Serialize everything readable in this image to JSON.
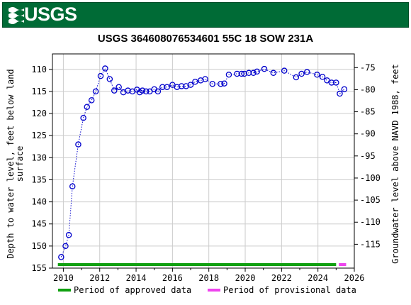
{
  "header": {
    "logo_text": "USGS"
  },
  "chart_data": {
    "type": "scatter",
    "title": "USGS 364608076534601 55C 18 SOW 231A",
    "ylabel_left": [
      "Depth to water level, feet below land",
      "surface"
    ],
    "ylabel_right": "Groundwater level above NAVD 1988, feet",
    "x_ticks": [
      "2010",
      "2012",
      "2014",
      "2016",
      "2018",
      "2020",
      "2022",
      "2024",
      "2026"
    ],
    "y_left_ticks": [
      "110",
      "115",
      "120",
      "125",
      "130",
      "135",
      "140",
      "145",
      "150",
      "155"
    ],
    "y_right_ticks": [
      "-75",
      "-80",
      "-85",
      "-90",
      "-95",
      "-100",
      "-105",
      "-110",
      "-115"
    ],
    "xlim": [
      2009.4,
      2026
    ],
    "ylim_left": [
      155,
      106.5
    ],
    "grid": true,
    "series": [
      {
        "values": [
          [
            2009.88,
            152.5
          ],
          [
            2010.12,
            150.0
          ],
          [
            2010.3,
            147.5
          ],
          [
            2010.5,
            136.5
          ],
          [
            2010.82,
            127.0
          ],
          [
            2011.1,
            121.0
          ],
          [
            2011.3,
            118.5
          ],
          [
            2011.55,
            117.0
          ],
          [
            2011.78,
            115.0
          ],
          [
            2012.05,
            111.5
          ],
          [
            2012.3,
            109.8
          ],
          [
            2012.55,
            112.2
          ],
          [
            2012.8,
            114.8
          ],
          [
            2013.05,
            114.0
          ],
          [
            2013.3,
            115.2
          ],
          [
            2013.55,
            114.8
          ],
          [
            2013.8,
            115.0
          ],
          [
            2014.05,
            114.6
          ],
          [
            2014.2,
            115.2
          ],
          [
            2014.35,
            114.8
          ],
          [
            2014.55,
            115.0
          ],
          [
            2014.75,
            115.0
          ],
          [
            2015.0,
            114.5
          ],
          [
            2015.2,
            115.0
          ],
          [
            2015.45,
            114.0
          ],
          [
            2015.7,
            114.0
          ],
          [
            2016.0,
            113.5
          ],
          [
            2016.25,
            114.0
          ],
          [
            2016.5,
            113.8
          ],
          [
            2016.75,
            113.8
          ],
          [
            2017.0,
            113.5
          ],
          [
            2017.25,
            112.8
          ],
          [
            2017.55,
            112.5
          ],
          [
            2017.8,
            112.2
          ],
          [
            2018.2,
            113.3
          ],
          [
            2018.65,
            113.3
          ],
          [
            2018.85,
            113.2
          ],
          [
            2019.1,
            111.2
          ],
          [
            2019.55,
            111.0
          ],
          [
            2019.8,
            111.0
          ],
          [
            2019.95,
            111.0
          ],
          [
            2020.2,
            110.8
          ],
          [
            2020.45,
            110.8
          ],
          [
            2020.65,
            110.5
          ],
          [
            2021.05,
            109.9
          ],
          [
            2021.55,
            110.8
          ],
          [
            2022.15,
            110.3
          ],
          [
            2022.8,
            111.8
          ],
          [
            2023.1,
            111.0
          ],
          [
            2023.4,
            110.6
          ],
          [
            2023.95,
            111.2
          ],
          [
            2024.25,
            111.7
          ],
          [
            2024.5,
            112.5
          ],
          [
            2024.75,
            113.0
          ],
          [
            2025.0,
            113.0
          ],
          [
            2025.2,
            115.5
          ],
          [
            2025.45,
            114.5
          ]
        ]
      }
    ],
    "periods": [
      {
        "label": "Period of approved data",
        "color": "#10a010",
        "start": 2009.7,
        "end": 2025.0
      },
      {
        "label": "Period of provisional data",
        "color": "#ee44ee",
        "start": 2025.15,
        "end": 2025.55
      }
    ],
    "point_color": "#0000cc"
  }
}
